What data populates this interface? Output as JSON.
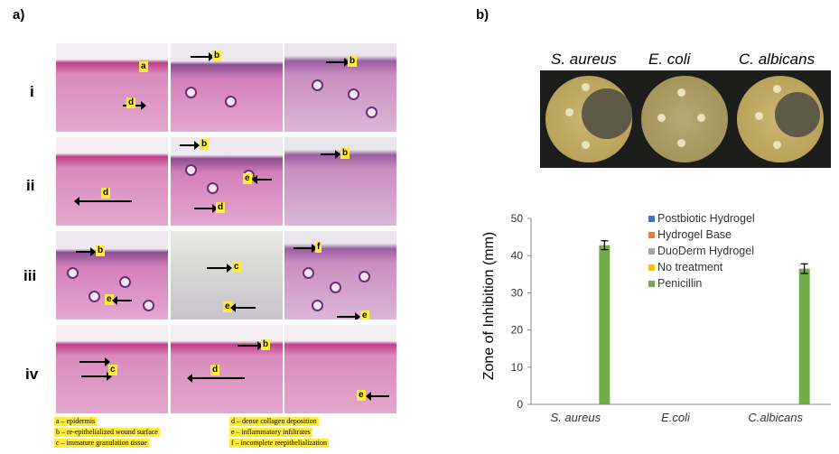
{
  "panel_a": {
    "label": "a)",
    "rows": [
      {
        "label": "i",
        "tiles": [
          {
            "markers": [
              "a",
              "d"
            ]
          },
          {
            "markers": [
              "b"
            ]
          },
          {
            "markers": [
              "b"
            ]
          }
        ]
      },
      {
        "label": "ii",
        "tiles": [
          {
            "markers": [
              "d"
            ]
          },
          {
            "markers": [
              "b",
              "e",
              "d"
            ]
          },
          {
            "markers": [
              "b"
            ]
          }
        ]
      },
      {
        "label": "iii",
        "tiles": [
          {
            "markers": [
              "b",
              "e"
            ]
          },
          {
            "markers": [
              "c",
              "e"
            ]
          },
          {
            "markers": [
              "f",
              "e"
            ]
          }
        ]
      },
      {
        "label": "iv",
        "tiles": [
          {
            "markers": [
              "c"
            ]
          },
          {
            "markers": [
              "d",
              "b"
            ]
          },
          {
            "markers": [
              "e"
            ]
          }
        ]
      }
    ],
    "legend": [
      "a – epidermis",
      "b – re-epithelialized wound surface",
      "c – immature granulation tissue",
      "d – dense collagen deposition",
      "e – inflammatory infiltrates",
      "f – incomplete reepithelialization"
    ]
  },
  "panel_b": {
    "label": "b)",
    "plates": [
      {
        "species": "S. aureus"
      },
      {
        "species": "E. coli"
      },
      {
        "species": "C. albicans"
      }
    ]
  },
  "chart_data": {
    "type": "bar",
    "categories": [
      "S. aureus",
      "E.coli",
      "C.albicans"
    ],
    "ylabel": "Zone of Inhibition (mm)",
    "ylim": [
      0,
      50
    ],
    "yticks": [
      0,
      10,
      20,
      30,
      40,
      50
    ],
    "legend_position": "top-right",
    "series": [
      {
        "name": "Postbiotic Hydrogel",
        "color": "#4472c4",
        "values": [
          0,
          0,
          0
        ]
      },
      {
        "name": "Hydrogel Base",
        "color": "#ed7d31",
        "values": [
          0,
          0,
          0
        ]
      },
      {
        "name": "DuoDerm Hydrogel",
        "color": "#a5a5a5",
        "values": [
          0,
          0,
          0
        ]
      },
      {
        "name": "No treatment",
        "color": "#ffc000",
        "values": [
          0,
          0,
          0
        ]
      },
      {
        "name": "Penicillin",
        "color": "#70ad47",
        "values": [
          42.8,
          0,
          36.5
        ],
        "errors": [
          1.2,
          0,
          1.3
        ]
      }
    ]
  }
}
